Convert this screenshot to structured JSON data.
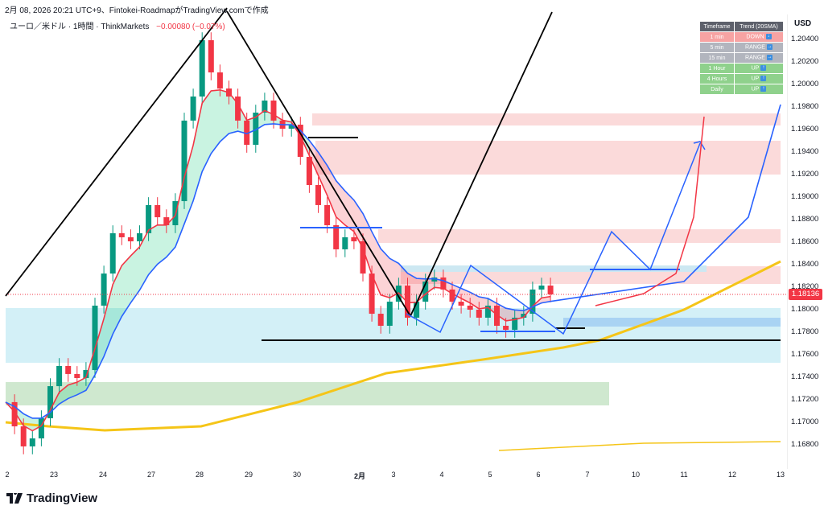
{
  "header": {
    "attribution": "2月 08, 2026 20:21 UTC+9、Fintokei-RoadmapがTradingView.comで作成"
  },
  "legend": {
    "symbol": "ユーロ／米ドル · 1時間 · ThinkMarkets",
    "change": "−0.00080 (−0.07%)"
  },
  "trend_table": {
    "headers": [
      "Timeframe",
      "Trend (20SMA)"
    ],
    "rows": [
      {
        "tf": "1 min",
        "trend": "DOWN",
        "icon": "arrow-down",
        "color": "#f7a3a3"
      },
      {
        "tf": "5 min",
        "trend": "RANGE",
        "icon": "arrow-right",
        "color": "#b2b5be"
      },
      {
        "tf": "15 min",
        "trend": "RANGE",
        "icon": "arrow-right",
        "color": "#b2b5be"
      },
      {
        "tf": "1 Hour",
        "trend": "UP",
        "icon": "arrow-up",
        "color": "#8fd18c"
      },
      {
        "tf": "4 Hours",
        "trend": "UP",
        "icon": "arrow-up",
        "color": "#8fd18c"
      },
      {
        "tf": "Daily",
        "trend": "UP",
        "icon": "arrow-up",
        "color": "#8fd18c"
      }
    ]
  },
  "price_axis": {
    "unit": "USD",
    "labels": [
      "1.20400",
      "1.20200",
      "1.20000",
      "1.19800",
      "1.19600",
      "1.19400",
      "1.19200",
      "1.19000",
      "1.18800",
      "1.18600",
      "1.18400",
      "1.18200",
      "1.18000",
      "1.17800",
      "1.17600",
      "1.17400",
      "1.17200",
      "1.17000",
      "1.16800"
    ],
    "current_price": "1.18136"
  },
  "time_axis": {
    "labels": [
      "2",
      "23",
      "24",
      "27",
      "28",
      "29",
      "30",
      "2月",
      "3",
      "4",
      "5",
      "6",
      "7",
      "10",
      "11",
      "12",
      "13"
    ]
  },
  "logo": {
    "text": "TradingView"
  },
  "colors": {
    "up": "#089981",
    "down": "#f23645",
    "ma_fast": "#f23645",
    "ma_slow": "#2962ff",
    "ma_long": "#f5c518"
  },
  "chart_data": {
    "type": "candlestick",
    "symbol": "EURUSD 1H",
    "ylim": [
      1.166,
      1.2065
    ],
    "closes": [
      1.17179,
      1.16964,
      1.16786,
      1.16857,
      1.17036,
      1.17321,
      1.175,
      1.17429,
      1.17393,
      1.17464,
      1.18036,
      1.18321,
      1.18679,
      1.18643,
      1.18607,
      1.18679,
      1.18929,
      1.18821,
      1.1875,
      1.18964,
      1.19679,
      1.19893,
      1.20393,
      1.20107,
      1.19964,
      1.19893,
      1.19679,
      1.19464,
      1.1975,
      1.19857,
      1.19679,
      1.19607,
      1.19643,
      1.19357,
      1.19107,
      1.18929,
      1.1875,
      1.18536,
      1.18643,
      1.18607,
      1.18321,
      1.17964,
      1.17857,
      1.18071,
      1.18214,
      1.17929,
      1.18071,
      1.1825,
      1.18286,
      1.18179,
      1.18071,
      1.18036,
      1.18,
      1.17929,
      1.18036,
      1.17857,
      1.17821,
      1.17929,
      1.17964,
      1.18179,
      1.18214,
      1.18136
    ]
  }
}
